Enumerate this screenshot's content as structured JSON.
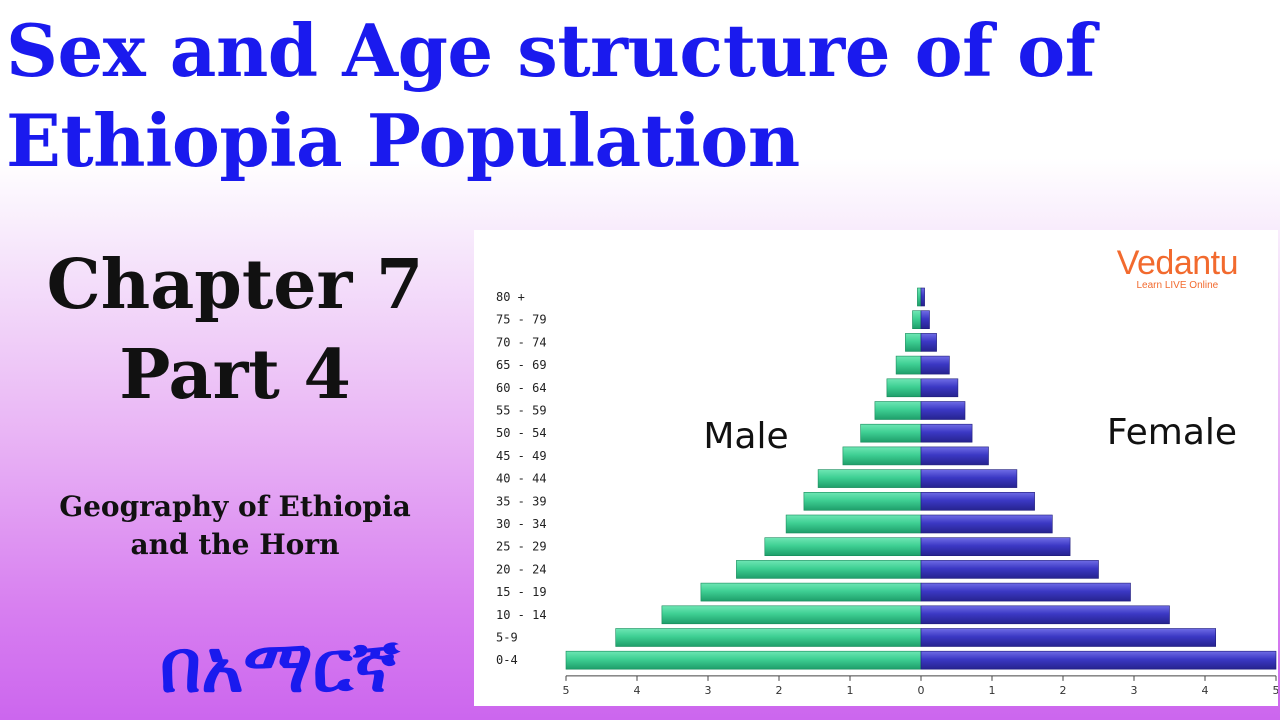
{
  "header": {
    "title": "Sex and Age structure of  of Ethiopia Population"
  },
  "left": {
    "chapter_line1": "Chapter 7",
    "chapter_line2": "Part 4",
    "subtitle_line1": "Geography of Ethiopia",
    "subtitle_line2": "and the Horn",
    "amharic_text": "በአማርኛ"
  },
  "logo": {
    "name": "Vedantu",
    "tagline": "Learn LIVE Online"
  },
  "colors": {
    "title": "#1a1aee",
    "male_bar": "#3ecf93",
    "male_bar_dark": "#1e9e6a",
    "female_bar": "#3b38c4",
    "female_bar_dark": "#26238f",
    "logo": "#f26a2e"
  },
  "chart_data": {
    "type": "bar",
    "orientation": "horizontal-population-pyramid",
    "categories": [
      "80 +",
      "75 - 79",
      "70 - 74",
      "65 - 69",
      "60 - 64",
      "55 - 59",
      "50 - 54",
      "45 - 49",
      "40 - 44",
      "35 - 39",
      "30 - 34",
      "25 - 29",
      "20 - 24",
      "15 - 19",
      "10 - 14",
      "5-9",
      "0-4"
    ],
    "series": [
      {
        "name": "Male",
        "values": [
          0.05,
          0.12,
          0.22,
          0.35,
          0.48,
          0.65,
          0.85,
          1.1,
          1.45,
          1.65,
          1.9,
          2.2,
          2.6,
          3.1,
          3.65,
          4.3,
          5.0
        ]
      },
      {
        "name": "Female",
        "values": [
          0.05,
          0.12,
          0.22,
          0.4,
          0.52,
          0.62,
          0.72,
          0.95,
          1.35,
          1.6,
          1.85,
          2.1,
          2.5,
          2.95,
          3.5,
          4.15,
          5.0
        ]
      }
    ],
    "xlim": [
      -5,
      5
    ],
    "x_ticks": [
      "5",
      "4",
      "3",
      "2",
      "1",
      "0",
      "1",
      "2",
      "3",
      "4",
      "5"
    ],
    "grid": false
  }
}
